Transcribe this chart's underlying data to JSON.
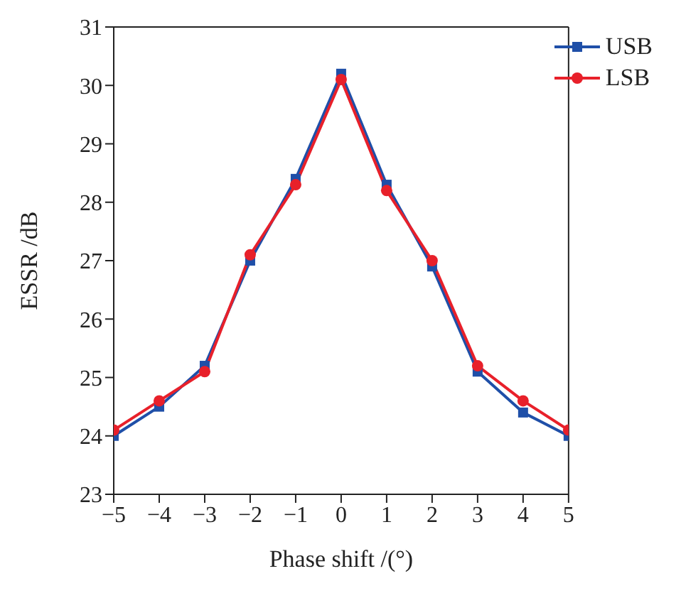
{
  "chart_data": {
    "type": "line",
    "xlabel": "Phase shift /(°)",
    "ylabel": "ESSR /dB",
    "x": [
      -5,
      -4,
      -3,
      -2,
      -1,
      0,
      1,
      2,
      3,
      4,
      5
    ],
    "series": [
      {
        "name": "USB",
        "color": "#1f4fa8",
        "marker": "square",
        "values": [
          24.0,
          24.5,
          25.2,
          27.0,
          28.4,
          30.2,
          28.3,
          26.9,
          25.1,
          24.4,
          24.0
        ]
      },
      {
        "name": "LSB",
        "color": "#e8202a",
        "marker": "circle",
        "values": [
          24.1,
          24.6,
          25.1,
          27.1,
          28.3,
          30.1,
          28.2,
          27.0,
          25.2,
          24.6,
          24.1
        ]
      }
    ],
    "xlim": [
      -5,
      5
    ],
    "ylim": [
      23,
      31
    ],
    "xticks": [
      {
        "value": -5,
        "label": "−5"
      },
      {
        "value": -4,
        "label": "−4"
      },
      {
        "value": -3,
        "label": "−3"
      },
      {
        "value": -2,
        "label": "−2"
      },
      {
        "value": -1,
        "label": "−1"
      },
      0,
      1,
      2,
      3,
      4,
      5
    ],
    "yticks": [
      23,
      24,
      25,
      26,
      27,
      28,
      29,
      30,
      31
    ],
    "legend": "top right",
    "grid": false,
    "line_style": "solid"
  }
}
